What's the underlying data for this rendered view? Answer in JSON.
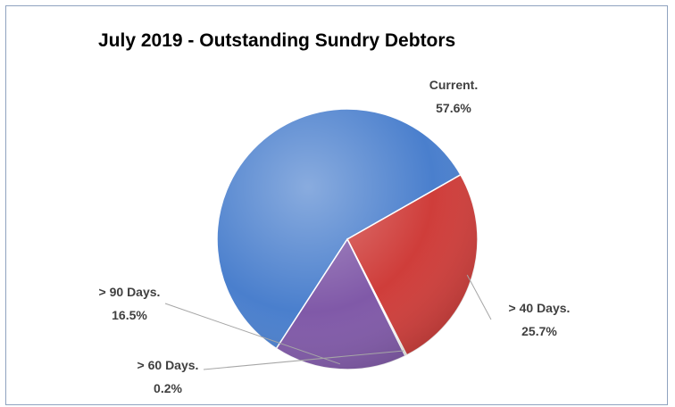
{
  "chart_data": {
    "type": "pie",
    "title": "July 2019 - Outstanding Sundry Debtors",
    "slices": [
      {
        "label": "Current.",
        "percent_text": "57.6%",
        "value": 57.6,
        "color": "#4a7fcd"
      },
      {
        "label": "> 40 Days.",
        "percent_text": "25.7%",
        "value": 25.7,
        "color": "#cf3d3a"
      },
      {
        "label": "> 60 Days.",
        "percent_text": "0.2%",
        "value": 0.2,
        "color": "#8fb44c"
      },
      {
        "label": "> 90 Days.",
        "percent_text": "16.5%",
        "value": 16.5,
        "color": "#8059a8"
      }
    ]
  }
}
